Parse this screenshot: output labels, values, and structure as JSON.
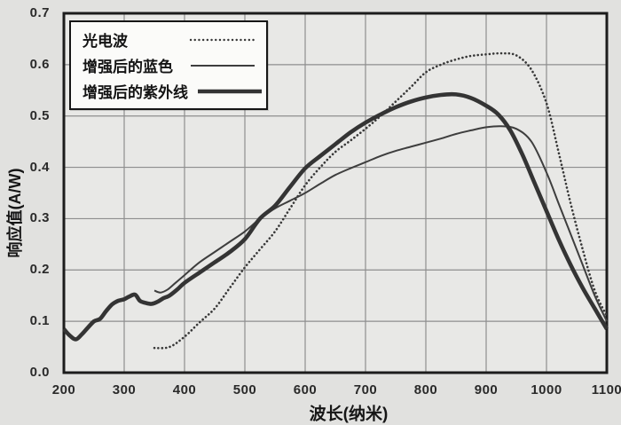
{
  "figure": {
    "background": "#e1e1df",
    "plot_background": "#e8e8e6",
    "grid_color": "#8e8e8e",
    "border_color": "#1c1c1c",
    "text_color": "#1e1e1e"
  },
  "chart_data": {
    "type": "line",
    "title": "",
    "xlabel": "波长(纳米)",
    "ylabel": "响应值(A/W)",
    "xlim": [
      200,
      1100
    ],
    "ylim": [
      0.0,
      0.7
    ],
    "x_ticks": [
      200,
      300,
      400,
      500,
      600,
      700,
      800,
      900,
      1000,
      1100
    ],
    "y_ticks": [
      "0.0",
      "0.1",
      "0.2",
      "0.3",
      "0.4",
      "0.5",
      "0.6",
      "0.7"
    ],
    "grid": true,
    "legend_position": "top-left",
    "series": [
      {
        "name": "光电波",
        "line": "dotted",
        "color": "#383838",
        "width": 2.6,
        "points": [
          [
            350,
            0.048
          ],
          [
            375,
            0.05
          ],
          [
            400,
            0.07
          ],
          [
            425,
            0.098
          ],
          [
            450,
            0.125
          ],
          [
            475,
            0.165
          ],
          [
            500,
            0.205
          ],
          [
            525,
            0.24
          ],
          [
            550,
            0.275
          ],
          [
            575,
            0.32
          ],
          [
            600,
            0.365
          ],
          [
            625,
            0.4
          ],
          [
            650,
            0.43
          ],
          [
            675,
            0.452
          ],
          [
            700,
            0.475
          ],
          [
            725,
            0.5
          ],
          [
            750,
            0.528
          ],
          [
            775,
            0.556
          ],
          [
            800,
            0.585
          ],
          [
            825,
            0.6
          ],
          [
            850,
            0.61
          ],
          [
            875,
            0.617
          ],
          [
            900,
            0.62
          ],
          [
            925,
            0.622
          ],
          [
            950,
            0.618
          ],
          [
            975,
            0.59
          ],
          [
            1000,
            0.525
          ],
          [
            1020,
            0.43
          ],
          [
            1040,
            0.33
          ],
          [
            1060,
            0.24
          ],
          [
            1080,
            0.16
          ],
          [
            1100,
            0.11
          ]
        ]
      },
      {
        "name": "增强后的蓝色",
        "line": "solid",
        "color": "#3e3e3e",
        "width": 2,
        "points": [
          [
            350,
            0.16
          ],
          [
            360,
            0.156
          ],
          [
            372,
            0.162
          ],
          [
            385,
            0.175
          ],
          [
            400,
            0.19
          ],
          [
            425,
            0.215
          ],
          [
            450,
            0.235
          ],
          [
            475,
            0.255
          ],
          [
            500,
            0.275
          ],
          [
            525,
            0.3
          ],
          [
            550,
            0.32
          ],
          [
            575,
            0.335
          ],
          [
            600,
            0.35
          ],
          [
            625,
            0.368
          ],
          [
            650,
            0.385
          ],
          [
            675,
            0.398
          ],
          [
            700,
            0.41
          ],
          [
            725,
            0.422
          ],
          [
            750,
            0.432
          ],
          [
            775,
            0.44
          ],
          [
            800,
            0.448
          ],
          [
            825,
            0.456
          ],
          [
            850,
            0.465
          ],
          [
            875,
            0.472
          ],
          [
            900,
            0.478
          ],
          [
            925,
            0.48
          ],
          [
            950,
            0.475
          ],
          [
            975,
            0.45
          ],
          [
            1000,
            0.39
          ],
          [
            1020,
            0.33
          ],
          [
            1040,
            0.27
          ],
          [
            1060,
            0.21
          ],
          [
            1080,
            0.15
          ],
          [
            1100,
            0.1
          ]
        ]
      },
      {
        "name": "增强后的紫外线",
        "line": "solid",
        "color": "#343434",
        "width": 4.6,
        "points": [
          [
            200,
            0.085
          ],
          [
            210,
            0.072
          ],
          [
            220,
            0.065
          ],
          [
            230,
            0.075
          ],
          [
            240,
            0.088
          ],
          [
            250,
            0.1
          ],
          [
            260,
            0.105
          ],
          [
            270,
            0.12
          ],
          [
            280,
            0.133
          ],
          [
            290,
            0.14
          ],
          [
            300,
            0.143
          ],
          [
            308,
            0.148
          ],
          [
            318,
            0.152
          ],
          [
            326,
            0.14
          ],
          [
            335,
            0.136
          ],
          [
            345,
            0.134
          ],
          [
            355,
            0.138
          ],
          [
            365,
            0.145
          ],
          [
            375,
            0.15
          ],
          [
            388,
            0.162
          ],
          [
            400,
            0.175
          ],
          [
            425,
            0.195
          ],
          [
            450,
            0.215
          ],
          [
            475,
            0.235
          ],
          [
            500,
            0.26
          ],
          [
            525,
            0.3
          ],
          [
            550,
            0.325
          ],
          [
            575,
            0.362
          ],
          [
            600,
            0.398
          ],
          [
            625,
            0.422
          ],
          [
            650,
            0.445
          ],
          [
            675,
            0.468
          ],
          [
            700,
            0.487
          ],
          [
            725,
            0.503
          ],
          [
            750,
            0.517
          ],
          [
            775,
            0.528
          ],
          [
            800,
            0.536
          ],
          [
            825,
            0.541
          ],
          [
            850,
            0.542
          ],
          [
            875,
            0.535
          ],
          [
            900,
            0.52
          ],
          [
            920,
            0.503
          ],
          [
            940,
            0.472
          ],
          [
            960,
            0.425
          ],
          [
            980,
            0.37
          ],
          [
            1000,
            0.315
          ],
          [
            1020,
            0.26
          ],
          [
            1040,
            0.21
          ],
          [
            1060,
            0.165
          ],
          [
            1080,
            0.125
          ],
          [
            1100,
            0.085
          ]
        ]
      }
    ]
  }
}
